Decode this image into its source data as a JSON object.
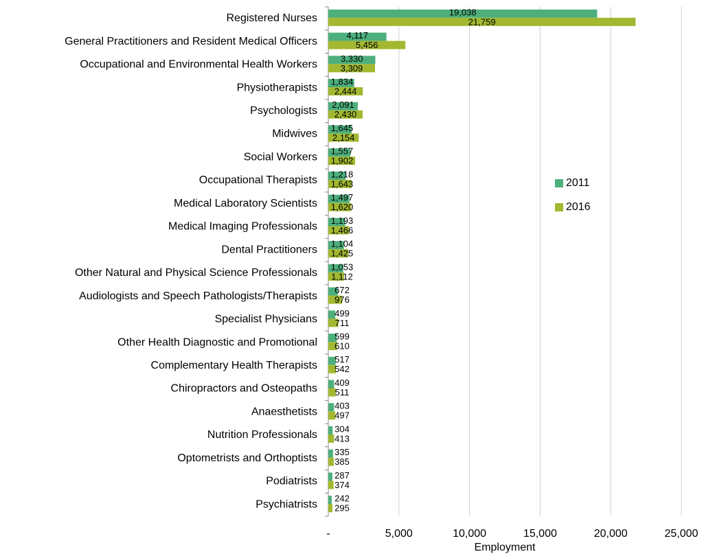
{
  "chart_data": {
    "type": "bar",
    "orientation": "horizontal",
    "x_label": "Employment",
    "categories": [
      "Registered Nurses",
      "General Practitioners and Resident Medical Officers",
      "Occupational and Environmental Health Workers",
      "Physiotherapists",
      "Psychologists",
      "Midwives",
      "Social Workers",
      "Occupational Therapists",
      "Medical Laboratory Scientists",
      "Medical Imaging Professionals",
      "Dental Practitioners",
      "Other Natural and Physical Science Professionals",
      "Audiologists and Speech Pathologists/Therapists",
      "Specialist Physicians",
      "Other Health Diagnostic and Promotional",
      "Complementary Health Therapists",
      "Chiropractors and Osteopaths",
      "Anaesthetists",
      "Nutrition Professionals",
      "Optometrists and Orthoptists",
      "Podiatrists",
      "Psychiatrists"
    ],
    "series": [
      {
        "name": "2011",
        "color": "#4daf7c",
        "values": [
          19038,
          4117,
          3330,
          1834,
          2091,
          1645,
          1557,
          1218,
          1497,
          1193,
          1104,
          1053,
          672,
          499,
          599,
          517,
          409,
          403,
          304,
          335,
          287,
          242
        ],
        "value_labels": [
          "19,038",
          "4,117",
          "3,330",
          "1,834",
          "2,091",
          "1,645",
          "1,557",
          "1,218",
          "1,497",
          "1,193",
          "1,104",
          "1,053",
          "672",
          "499",
          "599",
          "517",
          "409",
          "403",
          "304",
          "335",
          "287",
          "242"
        ]
      },
      {
        "name": "2016",
        "color": "#a3b830",
        "values": [
          21759,
          5456,
          3309,
          2444,
          2430,
          2154,
          1902,
          1643,
          1620,
          1466,
          1425,
          1112,
          976,
          711,
          610,
          542,
          511,
          497,
          413,
          385,
          374,
          295
        ],
        "value_labels": [
          "21,759",
          "5,456",
          "3,309",
          "2,444",
          "2,430",
          "2,154",
          "1,902",
          "1,643",
          "1,620",
          "1,466",
          "1,425",
          "1,112",
          "976",
          "711",
          "610",
          "542",
          "511",
          "497",
          "413",
          "385",
          "374",
          "295"
        ]
      }
    ],
    "xlim": [
      0,
      25000
    ],
    "xticks": [
      {
        "value": 0,
        "label": "-"
      },
      {
        "value": 5000,
        "label": "5,000"
      },
      {
        "value": 10000,
        "label": "10,000"
      },
      {
        "value": 15000,
        "label": "15,000"
      },
      {
        "value": 20000,
        "label": "20,000"
      },
      {
        "value": 25000,
        "label": "25,000"
      }
    ],
    "grid": true,
    "legend": "right"
  }
}
